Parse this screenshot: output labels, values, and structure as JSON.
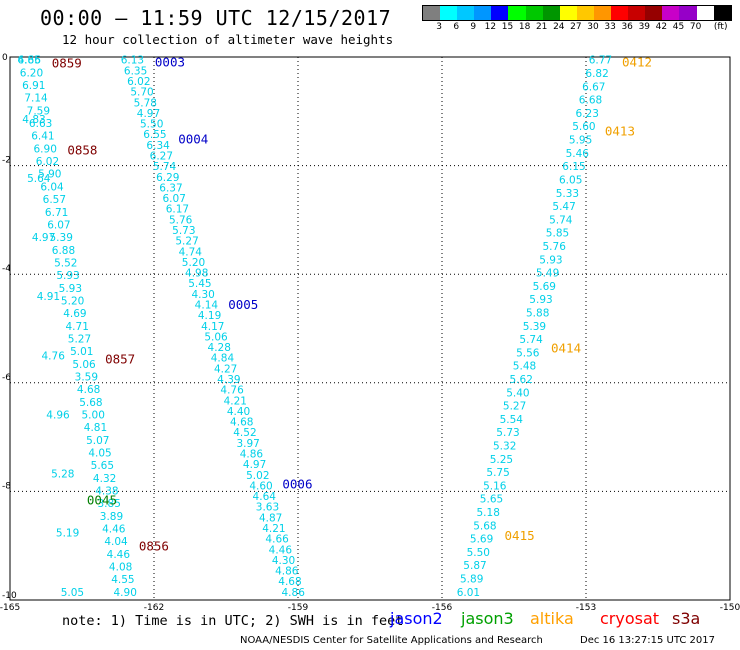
{
  "header": {
    "title": "00:00 – 11:59 UTC 12/15/2017",
    "subtitle": "12 hour collection of altimeter wave heights"
  },
  "colorbar": {
    "colors": [
      "#7f7f7f",
      "#00ffff",
      "#00c8ff",
      "#0096ff",
      "#0000ff",
      "#00ff00",
      "#00c800",
      "#009600",
      "#ffff00",
      "#ffc800",
      "#ff9600",
      "#ff0000",
      "#c80000",
      "#960000",
      "#c800c8",
      "#9600c8",
      "#ffffff",
      "#000000"
    ],
    "labels": [
      "3",
      "6",
      "9",
      "12",
      "15",
      "18",
      "21",
      "24",
      "27",
      "30",
      "33",
      "36",
      "39",
      "42",
      "45",
      "70",
      "(ft)"
    ]
  },
  "chart_data": {
    "type": "scatter",
    "title": "12 hour collection of altimeter wave heights",
    "xlabel": "",
    "ylabel": "",
    "xlim": [
      -165,
      -150
    ],
    "ylim": [
      -10,
      0
    ],
    "grid": true,
    "x_ticks": [
      "-165",
      "-162",
      "-159",
      "-156",
      "-153",
      "-150"
    ],
    "y_ticks": [
      "0",
      "-2",
      "-4",
      "-6",
      "-8",
      "-10"
    ],
    "value_color": "#00d0e8",
    "series": [
      {
        "name": "cryosat",
        "color": "#7f0000",
        "x_start": -164.6,
        "x_end": -162.6,
        "values": [
          "6.66",
          "6.20",
          "6.91",
          "7.14",
          "7.59",
          "6.63",
          "6.41",
          "6.90",
          "6.02",
          "5.90",
          "6.04",
          "6.57",
          "6.71",
          "6.07",
          "5.39",
          "6.88",
          "5.52",
          "5.93",
          "5.93",
          "5.20",
          "4.69",
          "4.71",
          "5.27",
          "5.01",
          "5.06",
          "3.59",
          "4.68",
          "5.68",
          "5.00",
          "4.81",
          "5.07",
          "4.05",
          "5.65",
          "4.32",
          "4.38",
          "3.85",
          "3.89",
          "4.46",
          "4.04",
          "4.46",
          "4.08",
          "4.55",
          "4.90"
        ],
        "tracks": [
          {
            "label": "0859",
            "y": -0.1
          },
          {
            "label": "0858",
            "y": -1.7
          },
          {
            "label": "0857",
            "y": -5.55
          },
          {
            "label": "0856",
            "y": -9.0
          }
        ]
      },
      {
        "name": "jason3",
        "color": "#007f00",
        "x_start": -164.6,
        "x_end": -163.7,
        "values": [
          "4.85",
          "4.83",
          "5.64",
          "4.97",
          "4.91",
          "4.76",
          "4.96",
          "5.28",
          "5.19",
          "5.05"
        ],
        "tracks": [
          {
            "label": "0045",
            "y": -8.15
          }
        ]
      },
      {
        "name": "jason2",
        "color": "#0000c8",
        "x_start": -162.45,
        "x_end": -159.1,
        "values": [
          "6.13",
          "6.35",
          "6.02",
          "5.70",
          "5.78",
          "4.97",
          "5.50",
          "6.55",
          "6.34",
          "6.27",
          "5.74",
          "6.29",
          "6.37",
          "6.07",
          "6.17",
          "5.76",
          "5.73",
          "5.27",
          "4.74",
          "5.20",
          "4.98",
          "5.45",
          "4.30",
          "4.14",
          "4.19",
          "4.17",
          "5.06",
          "4.28",
          "4.84",
          "4.27",
          "4.39",
          "4.76",
          "4.21",
          "4.40",
          "4.68",
          "4.52",
          "3.97",
          "4.86",
          "4.97",
          "5.02",
          "4.60",
          "4.64",
          "3.63",
          "4.87",
          "4.21",
          "4.66",
          "4.46",
          "4.30",
          "4.86",
          "4.68",
          "4.86"
        ],
        "tracks": [
          {
            "label": "0003",
            "y": -0.08
          },
          {
            "label": "0004",
            "y": -1.5
          },
          {
            "label": "0005",
            "y": -4.55
          },
          {
            "label": "0006",
            "y": -7.85
          }
        ]
      },
      {
        "name": "altika",
        "color": "#f0a000",
        "x_start": -152.7,
        "x_end": -155.45,
        "values": [
          "6.77",
          "6.82",
          "6.67",
          "6.68",
          "6.23",
          "5.60",
          "5.95",
          "5.46",
          "6.15",
          "6.05",
          "5.33",
          "5.47",
          "5.74",
          "5.85",
          "5.76",
          "5.93",
          "5.49",
          "5.69",
          "5.93",
          "5.88",
          "5.39",
          "5.74",
          "5.56",
          "5.48",
          "5.62",
          "5.40",
          "5.27",
          "5.54",
          "5.73",
          "5.32",
          "5.25",
          "5.75",
          "5.16",
          "5.65",
          "5.18",
          "5.68",
          "5.69",
          "5.50",
          "5.87",
          "5.89",
          "6.01"
        ],
        "tracks": [
          {
            "label": "0412",
            "y": -0.08
          },
          {
            "label": "0413",
            "y": -1.35
          },
          {
            "label": "0414",
            "y": -5.35
          },
          {
            "label": "0415",
            "y": -8.8
          }
        ]
      }
    ]
  },
  "legend": {
    "note": "note: 1) Time is in UTC; 2) SWH is in feet",
    "items": [
      {
        "label": "jason2",
        "color": "#0000ff"
      },
      {
        "label": "jason3",
        "color": "#00a000"
      },
      {
        "label": "altika",
        "color": "#ffa000"
      },
      {
        "label": "cryosat",
        "color": "#ff0000"
      },
      {
        "label": "s3a",
        "color": "#7f0000"
      }
    ]
  },
  "footer": {
    "credit": "NOAA/NESDIS Center for Satellite Applications and Research",
    "timestamp": "Dec 16 13:27:15 UTC 2017"
  }
}
